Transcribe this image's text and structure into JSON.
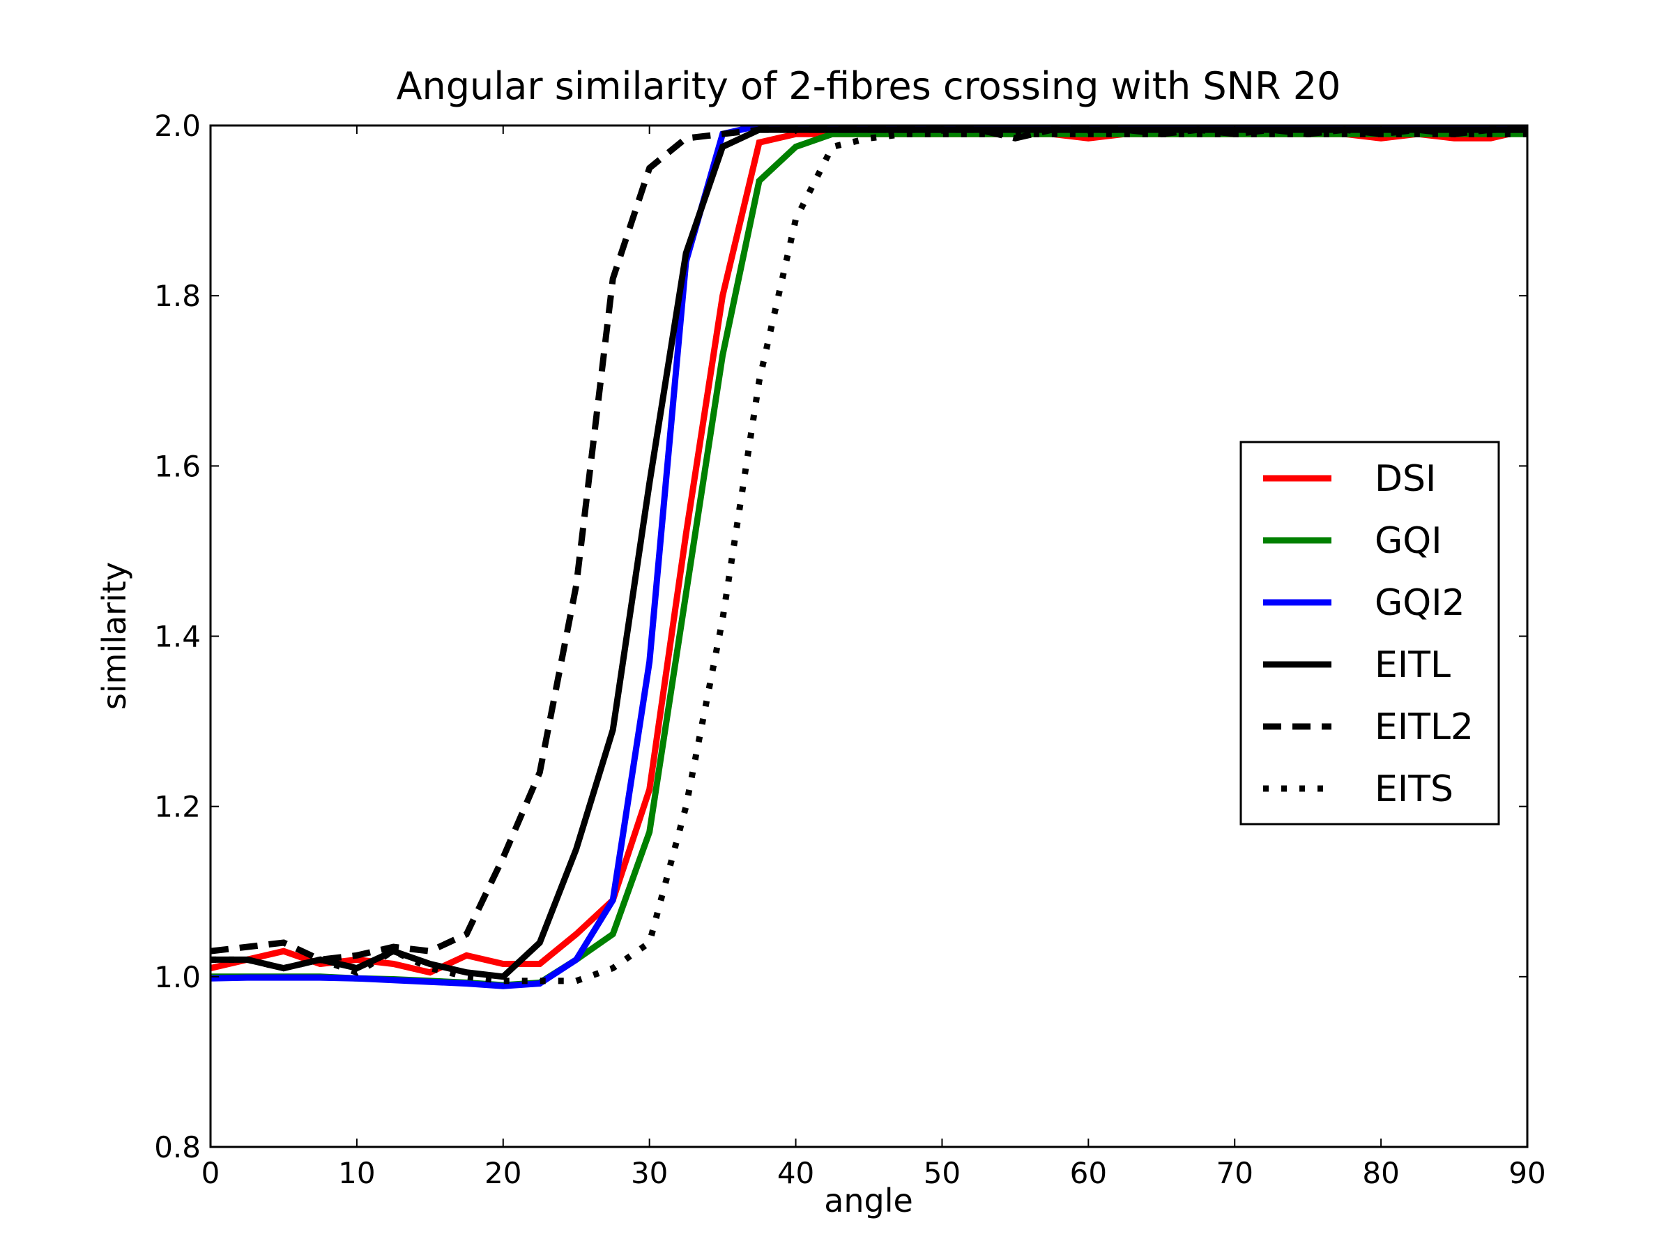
{
  "chart_data": {
    "type": "line",
    "title": "Angular similarity of 2-fibres crossing with SNR 20",
    "xlabel": "angle",
    "ylabel": "similarity",
    "xlim": [
      0,
      90
    ],
    "ylim": [
      0.8,
      2.0
    ],
    "xticks": [
      0,
      10,
      20,
      30,
      40,
      50,
      60,
      70,
      80,
      90
    ],
    "xtick_labels": [
      "0",
      "10",
      "20",
      "30",
      "40",
      "50",
      "60",
      "70",
      "80",
      "90"
    ],
    "yticks": [
      0.8,
      1.0,
      1.2,
      1.4,
      1.6,
      1.8,
      2.0
    ],
    "ytick_labels": [
      "0.8",
      "1.0",
      "1.2",
      "1.4",
      "1.6",
      "1.8",
      "2.0"
    ],
    "grid": false,
    "legend_position": "right",
    "x": [
      0,
      2.5,
      5,
      7.5,
      10,
      12.5,
      15,
      17.5,
      20,
      22.5,
      25,
      27.5,
      30,
      32.5,
      35,
      37.5,
      40,
      42.5,
      45,
      47.5,
      50,
      52.5,
      55,
      57.5,
      60,
      62.5,
      65,
      67.5,
      70,
      72.5,
      75,
      77.5,
      80,
      82.5,
      85,
      87.5,
      90
    ],
    "series": [
      {
        "name": "DSI",
        "color": "#ff0000",
        "style": "solid",
        "values": [
          1.01,
          1.02,
          1.03,
          1.015,
          1.02,
          1.015,
          1.005,
          1.025,
          1.015,
          1.015,
          1.05,
          1.09,
          1.22,
          1.52,
          1.8,
          1.98,
          1.99,
          1.99,
          1.99,
          1.99,
          1.99,
          1.99,
          1.99,
          1.99,
          1.985,
          1.99,
          1.99,
          1.99,
          1.99,
          1.99,
          1.99,
          1.99,
          1.985,
          1.99,
          1.985,
          1.985,
          1.995
        ]
      },
      {
        "name": "GQI",
        "color": "#008000",
        "style": "solid",
        "values": [
          1.0,
          1.0,
          1.0,
          1.0,
          0.998,
          0.997,
          0.995,
          0.993,
          0.99,
          0.993,
          1.02,
          1.05,
          1.17,
          1.45,
          1.73,
          1.935,
          1.975,
          1.99,
          1.99,
          1.99,
          1.99,
          1.99,
          1.99,
          1.99,
          1.99,
          1.99,
          1.99,
          1.99,
          1.99,
          1.99,
          1.99,
          1.99,
          1.99,
          1.99,
          1.99,
          1.99,
          1.99
        ]
      },
      {
        "name": "GQI2",
        "color": "#0000ff",
        "style": "solid",
        "values": [
          0.998,
          0.999,
          0.999,
          0.999,
          0.998,
          0.996,
          0.994,
          0.992,
          0.989,
          0.992,
          1.02,
          1.09,
          1.37,
          1.84,
          1.99,
          2.0,
          2.0,
          2.0,
          2.0,
          2.0,
          2.0,
          2.0,
          2.0,
          2.0,
          2.0,
          2.0,
          2.0,
          2.0,
          2.0,
          2.0,
          2.0,
          2.0,
          2.0,
          2.0,
          2.0,
          2.0,
          2.0
        ]
      },
      {
        "name": "EITL",
        "color": "#000000",
        "style": "solid",
        "values": [
          1.02,
          1.02,
          1.01,
          1.02,
          1.01,
          1.03,
          1.015,
          1.005,
          1.0,
          1.04,
          1.15,
          1.29,
          1.58,
          1.85,
          1.975,
          1.995,
          1.995,
          1.995,
          1.995,
          1.995,
          1.995,
          1.995,
          1.995,
          1.995,
          1.995,
          1.995,
          1.995,
          1.995,
          1.995,
          1.995,
          1.995,
          1.995,
          1.995,
          1.995,
          1.995,
          1.995,
          1.995
        ]
      },
      {
        "name": "EITL2",
        "color": "#000000",
        "style": "dashed",
        "values": [
          1.03,
          1.035,
          1.04,
          1.02,
          1.025,
          1.035,
          1.03,
          1.05,
          1.14,
          1.24,
          1.46,
          1.82,
          1.95,
          1.985,
          1.99,
          1.995,
          1.995,
          1.995,
          1.995,
          1.995,
          1.995,
          1.995,
          1.985,
          1.995,
          1.995,
          1.995,
          1.99,
          1.995,
          1.99,
          1.995,
          1.99,
          1.995,
          1.99,
          1.995,
          1.99,
          1.995,
          1.995
        ]
      },
      {
        "name": "EITS",
        "color": "#000000",
        "style": "dotted",
        "values": [
          1.02,
          1.02,
          1.01,
          1.02,
          1.005,
          1.03,
          1.01,
          1.0,
          0.995,
          0.995,
          0.995,
          1.01,
          1.04,
          1.2,
          1.42,
          1.7,
          1.89,
          1.975,
          1.985,
          1.99,
          1.99,
          1.99,
          1.99,
          1.99,
          1.99,
          1.99,
          1.99,
          1.99,
          1.99,
          1.99,
          1.99,
          1.99,
          1.99,
          1.99,
          1.99,
          1.99,
          1.99
        ]
      }
    ]
  }
}
